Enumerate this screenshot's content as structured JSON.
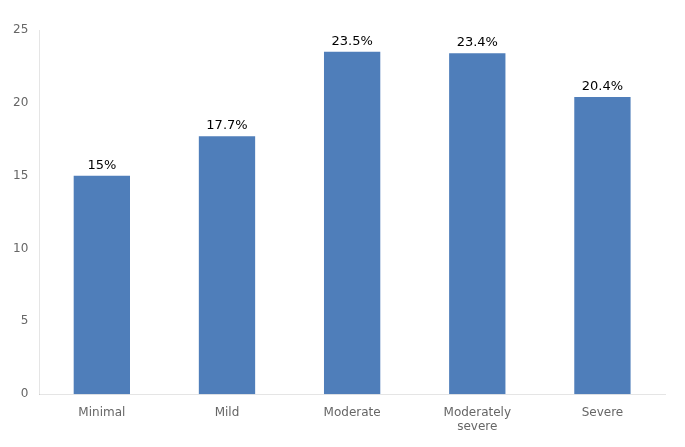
{
  "chart_data": {
    "type": "bar",
    "categories": [
      "Minimal",
      "Mild",
      "Moderate",
      "Moderately\nsevere",
      "Severe"
    ],
    "values": [
      15.0,
      17.7,
      23.5,
      23.4,
      20.4
    ],
    "value_labels": [
      "15%",
      "17.7%",
      "23.5%",
      "23.4%",
      "20.4%"
    ],
    "color": "#4f7eba",
    "ylim": [
      0,
      25
    ],
    "yticks": [
      0,
      5,
      10,
      15,
      20,
      25
    ],
    "grid": false,
    "data_labels": true
  }
}
